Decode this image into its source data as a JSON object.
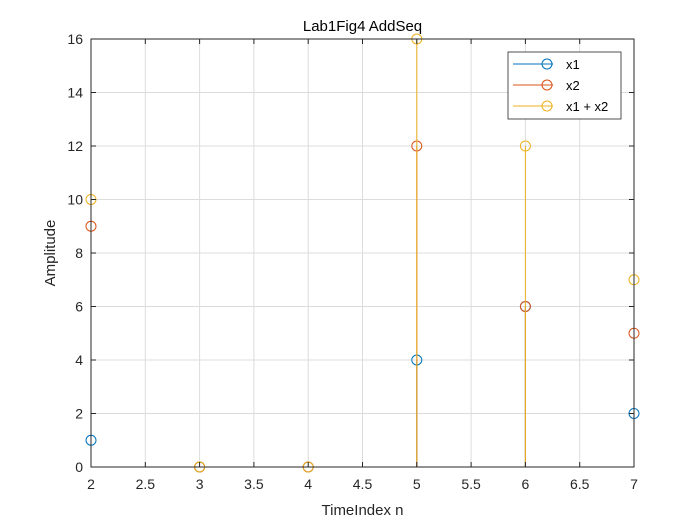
{
  "chart_data": {
    "type": "stem",
    "title": "Lab1Fig4 AddSeq",
    "xlabel": "TimeIndex n",
    "ylabel": "Amplitude",
    "xlim": [
      2,
      7
    ],
    "ylim": [
      0,
      16
    ],
    "xticks": [
      "2",
      "2.5",
      "3",
      "3.5",
      "4",
      "4.5",
      "5",
      "5.5",
      "6",
      "6.5",
      "7"
    ],
    "yticks": [
      "0",
      "2",
      "4",
      "6",
      "8",
      "10",
      "12",
      "14",
      "16"
    ],
    "grid": true,
    "legend_position": "top-right",
    "series": [
      {
        "name": "x1",
        "color": "#0072BD",
        "x": [
          2,
          3,
          4,
          5,
          6,
          7
        ],
        "values": [
          1,
          0,
          0,
          4,
          6,
          2
        ]
      },
      {
        "name": "x2",
        "color": "#D95319",
        "x": [
          2,
          3,
          4,
          5,
          6,
          7
        ],
        "values": [
          9,
          0,
          0,
          12,
          6,
          5
        ]
      },
      {
        "name": "x1 + x2",
        "color": "#EDB120",
        "x": [
          2,
          3,
          4,
          5,
          6,
          7
        ],
        "values": [
          10,
          0,
          0,
          16,
          12,
          7
        ]
      }
    ]
  }
}
